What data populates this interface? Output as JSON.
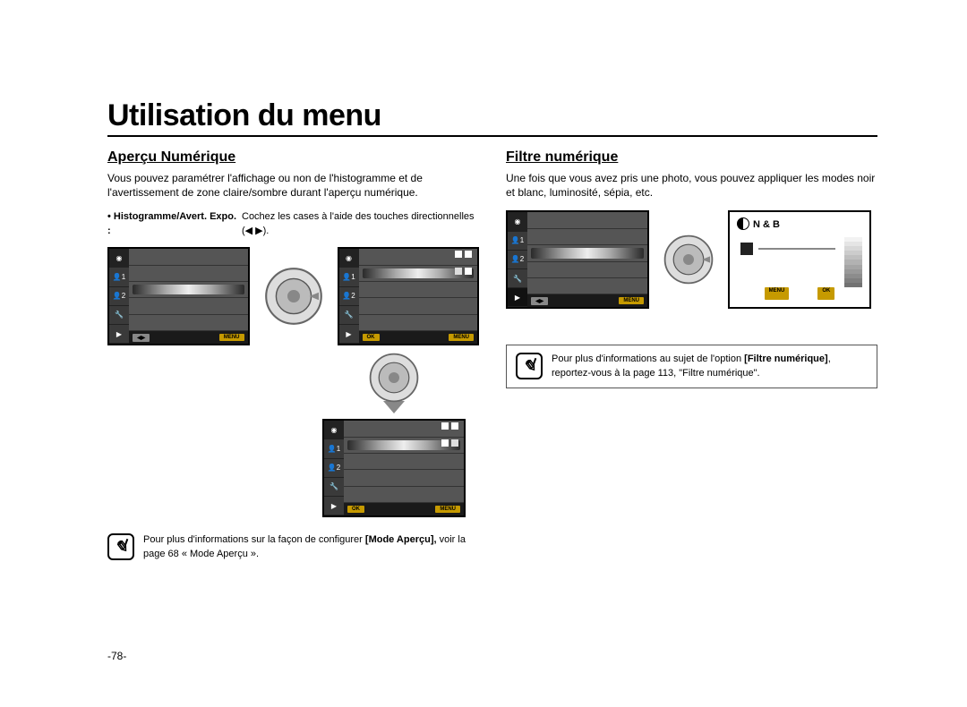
{
  "page": {
    "title": "Utilisation du menu",
    "number": "-78-"
  },
  "left": {
    "heading": "Aperçu Numérique",
    "intro": "Vous pouvez paramétrer l'affichage ou non de l'histogramme et de l'avertissement de zone claire/sombre durant l'aperçu numérique.",
    "bullet_label": "• Histogramme/Avert. Expo. :",
    "bullet_desc": "Cochez les cases à l'aide des touches directionnelles (◀ ▶).",
    "note_pre": "Pour plus d'informations sur la façon de configurer ",
    "note_bold": "[Mode Aperçu],",
    "note_post": " voir la page 68 « Mode Aperçu »."
  },
  "right": {
    "heading": "Filtre numérique",
    "intro": "Une fois que vous avez pris une photo, vous pouvez appliquer les modes noir et blanc, luminosité, sépia, etc.",
    "filter_label": "N & B",
    "note_pre": "Pour plus d'informations au sujet de l'option ",
    "note_bold": "[Filtre numérique]",
    "note_post": ", reportez-vous à la page 113, \"Filtre numérique\"."
  },
  "lcd": {
    "btn_menu": "MENU",
    "btn_ok": "OK",
    "tab_person": "👤",
    "tab_idx1": "1",
    "tab_idx2": "2"
  },
  "colors": {
    "accent": "#c69a00",
    "lcd_bg": "#555555",
    "arrow": "#888888",
    "grad_stops": [
      "#ffffff",
      "#f2f2f2",
      "#e5e5e5",
      "#d8d8d8",
      "#cccccc",
      "#bfbfbf",
      "#b2b2b2",
      "#a5a5a5",
      "#999999",
      "#8c8c8c",
      "#7f7f7f",
      "#727272"
    ]
  }
}
